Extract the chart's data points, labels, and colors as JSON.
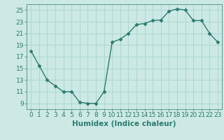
{
  "x": [
    0,
    1,
    2,
    3,
    4,
    5,
    6,
    7,
    8,
    9,
    10,
    11,
    12,
    13,
    14,
    15,
    16,
    17,
    18,
    19,
    20,
    21,
    22,
    23
  ],
  "y": [
    18,
    15.5,
    13,
    12,
    11,
    11,
    9.2,
    9,
    9,
    11,
    19.5,
    20,
    21,
    22.5,
    22.7,
    23.2,
    23.3,
    24.8,
    25.2,
    25,
    23.2,
    23.2,
    21,
    19.5
  ],
  "line_color": "#2d7a6e",
  "marker": "D",
  "marker_size": 2.5,
  "xlabel": "Humidex (Indice chaleur)",
  "xlabel_fontsize": 7.5,
  "xlabel_color": "#2d7a6e",
  "xlim": [
    -0.5,
    23.5
  ],
  "ylim": [
    8,
    26
  ],
  "yticks": [
    9,
    11,
    13,
    15,
    17,
    19,
    21,
    23,
    25
  ],
  "xticks": [
    0,
    1,
    2,
    3,
    4,
    5,
    6,
    7,
    8,
    9,
    10,
    11,
    12,
    13,
    14,
    15,
    16,
    17,
    18,
    19,
    20,
    21,
    22,
    23
  ],
  "background_color": "#cce9e5",
  "grid_color": "#b0d8d4",
  "tick_color": "#2d7a6e",
  "tick_fontsize": 6.5,
  "line_width": 1.0
}
